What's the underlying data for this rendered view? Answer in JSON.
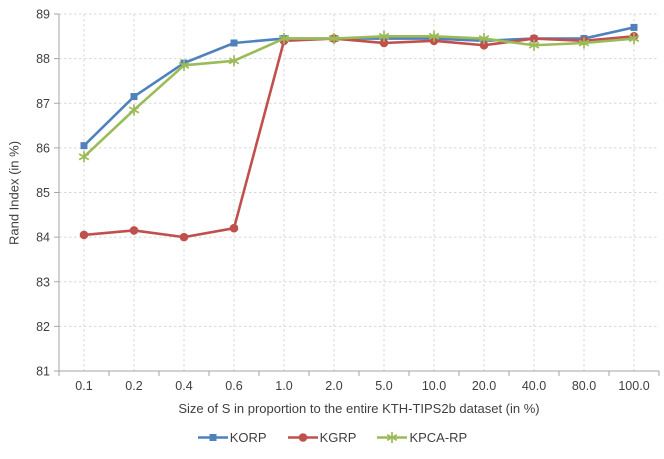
{
  "chart_data": {
    "type": "line",
    "title": "",
    "xlabel": "Size of S in proportion to the entire KTH-TIPS2b dataset (in %)",
    "ylabel": "Rand Index (in %)",
    "categories": [
      "0.1",
      "0.2",
      "0.4",
      "0.6",
      "1.0",
      "2.0",
      "5.0",
      "10.0",
      "20.0",
      "40.0",
      "80.0",
      "100.0"
    ],
    "y_ticks": [
      81,
      82,
      83,
      84,
      85,
      86,
      87,
      88,
      89
    ],
    "ylim": [
      81,
      89
    ],
    "grid": "horizontal and vertical dashed gridlines",
    "legend_position": "bottom",
    "series": [
      {
        "name": "KORP",
        "color": "#4F81BD",
        "marker": "square",
        "values": [
          86.05,
          87.15,
          87.9,
          88.35,
          88.45,
          88.45,
          88.45,
          88.45,
          88.4,
          88.45,
          88.45,
          88.7
        ]
      },
      {
        "name": "KGRP",
        "color": "#C0504D",
        "marker": "circle",
        "values": [
          84.05,
          84.15,
          84.0,
          84.2,
          88.4,
          88.45,
          88.35,
          88.4,
          88.3,
          88.45,
          88.4,
          88.5
        ]
      },
      {
        "name": "KPCA-RP",
        "color": "#9BBB59",
        "marker": "asterisk",
        "values": [
          85.8,
          86.85,
          87.85,
          87.95,
          88.45,
          88.45,
          88.5,
          88.5,
          88.45,
          88.3,
          88.35,
          88.45
        ]
      }
    ],
    "colors": {
      "grid": "#d7d7d7",
      "axis": "#a6a6a6",
      "text": "#3f3f3f"
    }
  }
}
